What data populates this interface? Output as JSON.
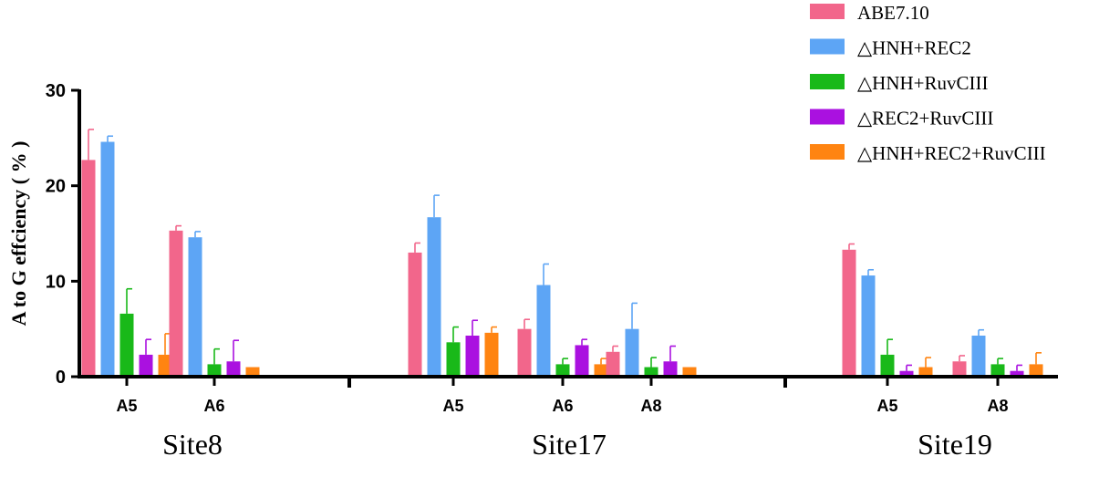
{
  "chart_data": {
    "type": "bar",
    "ylabel": "A to G effciency ( % )",
    "ylim": [
      0,
      30
    ],
    "yticks": [
      "0",
      "10",
      "20",
      "30"
    ],
    "colors": [
      "#F2668B",
      "#5DA5F5",
      "#19B919",
      "#AA11E0",
      "#FF8411"
    ],
    "groups": [
      {
        "name": "Site8",
        "categories": [
          "A5",
          "A6"
        ]
      },
      {
        "name": "Site17",
        "categories": [
          "A5",
          "A6",
          "A8"
        ]
      },
      {
        "name": "Site19",
        "categories": [
          "A5",
          "A8"
        ]
      }
    ],
    "series": [
      {
        "name": "ABE7.10",
        "values": [
          22.7,
          15.3,
          13.0,
          5.0,
          2.6,
          13.3,
          1.6
        ],
        "errors": [
          3.2,
          0.5,
          1.0,
          1.0,
          0.6,
          0.6,
          0.6
        ]
      },
      {
        "name": "△HNH+REC2",
        "values": [
          24.6,
          14.6,
          16.7,
          9.6,
          5.0,
          10.6,
          4.3
        ],
        "errors": [
          0.6,
          0.6,
          2.3,
          2.2,
          2.7,
          0.6,
          0.6
        ]
      },
      {
        "name": "△HNH+RuvCIII",
        "values": [
          6.6,
          1.3,
          3.6,
          1.3,
          1.0,
          2.3,
          1.3
        ],
        "errors": [
          2.6,
          1.6,
          1.6,
          0.6,
          1.0,
          1.6,
          0.6
        ]
      },
      {
        "name": "△REC2+RuvCIII",
        "values": [
          2.3,
          1.6,
          4.3,
          3.3,
          1.6,
          0.6,
          0.6
        ],
        "errors": [
          1.6,
          2.2,
          1.6,
          0.6,
          1.6,
          0.6,
          0.6
        ]
      },
      {
        "name": "△HNH+REC2+RuvCIII",
        "values": [
          2.3,
          1.0,
          4.6,
          1.3,
          1.0,
          1.0,
          1.3
        ],
        "errors": [
          2.2,
          0.0,
          0.6,
          0.6,
          0.0,
          1.0,
          1.2
        ]
      }
    ]
  }
}
